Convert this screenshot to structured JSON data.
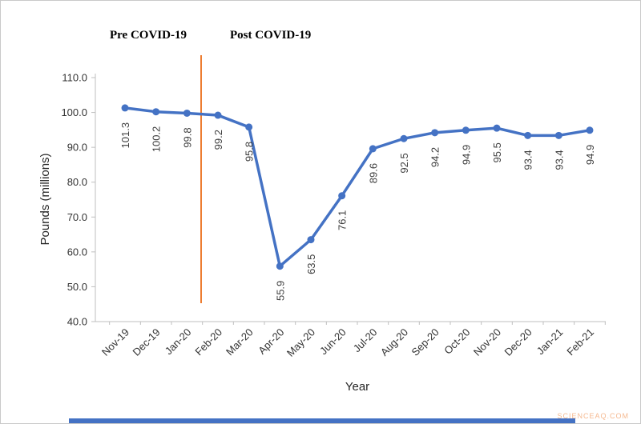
{
  "chart_data": {
    "type": "line",
    "title": "",
    "categories": [
      "Nov-19",
      "Dec-19",
      "Jan-20",
      "Feb-20",
      "Mar-20",
      "Apr-20",
      "May-20",
      "Jun-20",
      "Jul-20",
      "Aug-20",
      "Sep-20",
      "Oct-20",
      "Nov-20",
      "Dec-20",
      "Jan-21",
      "Feb-21"
    ],
    "values": [
      101.3,
      100.2,
      99.8,
      99.2,
      95.8,
      55.9,
      63.5,
      76.1,
      89.6,
      92.5,
      94.2,
      94.9,
      95.5,
      93.4,
      93.4,
      94.9
    ],
    "xlabel": "Year",
    "ylabel": "Pounds (millions)",
    "ylim": [
      40.0,
      110.0
    ],
    "ytick_step": 10,
    "ytick_labels": [
      "40.0",
      "50.0",
      "60.0",
      "70.0",
      "80.0",
      "90.0",
      "100.0",
      "110.0"
    ],
    "grid": "off",
    "legend": "none",
    "line_color": "#4472c4",
    "marker": "circle",
    "axis_color": "#bfbfbf",
    "annotations": {
      "pre_label": "Pre COVID-19",
      "post_label": "Post COVID-19",
      "divider_color": "#ed7d31",
      "divider_between": [
        "Jan-20",
        "Feb-20"
      ]
    }
  },
  "watermark": "SCIENCEAQ.COM",
  "footer_bar_color": "#4472c4"
}
